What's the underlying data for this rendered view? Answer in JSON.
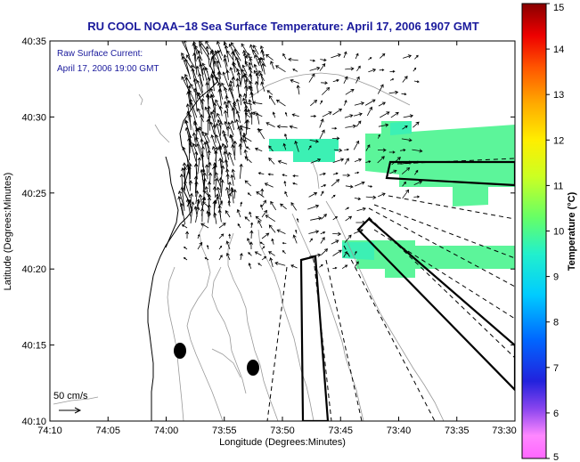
{
  "title": "RU COOL  NOAA−18  Sea Surface Temperature:  April 17, 2006 1907 GMT",
  "annotation": {
    "line1": "Raw Surface Current:",
    "line2": "April 17, 2006 19:00 GMT"
  },
  "scale_label": "50 cm/s",
  "axes": {
    "xlabel": "Longitude (Degrees:Minutes)",
    "ylabel": "Latitude (Degrees:Minutes)",
    "xticks": [
      "74:10",
      "74:05",
      "74:00",
      "73:55",
      "73:50",
      "73:45",
      "73:40",
      "73:35",
      "73:30"
    ],
    "yticks": [
      "40:35",
      "40:30",
      "40:25",
      "40:20",
      "40:15",
      "40:10"
    ]
  },
  "colorbar": {
    "label": "Temperature (°C)",
    "ticks": [
      "15",
      "14",
      "13",
      "12",
      "11",
      "10",
      "9",
      "8",
      "7",
      "6",
      "5"
    ],
    "min": 5,
    "max": 15
  },
  "colors": {
    "title": "#1a1a9c",
    "sst_patch": "#3cf0b4",
    "sst_patch_alt": "#5cf59a"
  }
}
